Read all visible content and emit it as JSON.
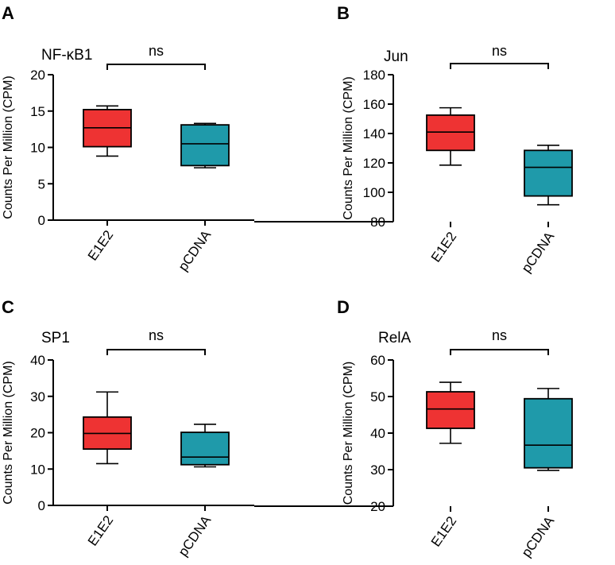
{
  "figure": {
    "colors": {
      "E1E2": "#ee3333",
      "pCDNA": "#1f9aaa",
      "stroke": "#000000"
    }
  },
  "chart_data": [
    {
      "panel": "A",
      "type": "box",
      "title": "NF-κB1",
      "significance": "ns",
      "ylabel": "Counts Per Million (CPM)",
      "xlabel": "",
      "ylim": [
        0,
        20
      ],
      "yticks": [
        0,
        5,
        10,
        15,
        20
      ],
      "categories": [
        "E1E2",
        "pCDNA"
      ],
      "boxes": [
        {
          "name": "E1E2",
          "min": 8.8,
          "q1": 10.1,
          "median": 12.7,
          "q3": 15.2,
          "max": 15.7
        },
        {
          "name": "pCDNA",
          "min": 7.2,
          "q1": 7.5,
          "median": 10.5,
          "q3": 13.1,
          "max": 13.3
        }
      ]
    },
    {
      "panel": "B",
      "type": "box",
      "title": "Jun",
      "significance": "ns",
      "ylabel": "Counts Per Million (CPM)",
      "xlabel": "",
      "ylim": [
        80,
        180
      ],
      "yticks": [
        80,
        100,
        120,
        140,
        160,
        180
      ],
      "categories": [
        "E1E2",
        "pCDNA"
      ],
      "boxes": [
        {
          "name": "E1E2",
          "min": 118.5,
          "q1": 128.5,
          "median": 141,
          "q3": 152.5,
          "max": 157.5
        },
        {
          "name": "pCDNA",
          "min": 91.5,
          "q1": 97.5,
          "median": 117,
          "q3": 128.5,
          "max": 132
        }
      ]
    },
    {
      "panel": "C",
      "type": "box",
      "title": "SP1",
      "significance": "ns",
      "ylabel": "Counts Per Million (CPM)",
      "xlabel": "",
      "ylim": [
        0,
        40
      ],
      "yticks": [
        0,
        10,
        20,
        30,
        40
      ],
      "categories": [
        "E1E2",
        "pCDNA"
      ],
      "boxes": [
        {
          "name": "E1E2",
          "min": 11.5,
          "q1": 15.5,
          "median": 19.8,
          "q3": 24.3,
          "max": 31.2
        },
        {
          "name": "pCDNA",
          "min": 10.6,
          "q1": 11.2,
          "median": 13.3,
          "q3": 20.1,
          "max": 22.3
        }
      ]
    },
    {
      "panel": "D",
      "type": "box",
      "title": "RelA",
      "significance": "ns",
      "ylabel": "Counts Per Million (CPM)",
      "xlabel": "",
      "ylim": [
        20,
        60
      ],
      "yticks": [
        20,
        30,
        40,
        50,
        60
      ],
      "categories": [
        "E1E2",
        "pCDNA"
      ],
      "boxes": [
        {
          "name": "E1E2",
          "min": 37.2,
          "q1": 41.3,
          "median": 46.6,
          "q3": 51.3,
          "max": 53.9
        },
        {
          "name": "pCDNA",
          "min": 29.8,
          "q1": 30.5,
          "median": 36.7,
          "q3": 49.4,
          "max": 52.2
        }
      ]
    }
  ]
}
